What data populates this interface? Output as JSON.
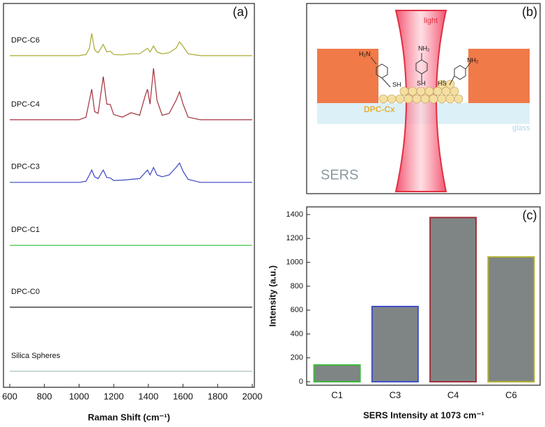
{
  "chart_data": [
    {
      "type": "line",
      "label": "(a)",
      "xlabel": "Raman Shift (cm⁻¹)",
      "x": [
        600,
        650,
        700,
        750,
        800,
        850,
        900,
        950,
        1000,
        1040,
        1060,
        1073,
        1090,
        1110,
        1140,
        1160,
        1180,
        1200,
        1250,
        1300,
        1350,
        1380,
        1395,
        1410,
        1430,
        1450,
        1480,
        1520,
        1560,
        1580,
        1600,
        1630,
        1700,
        1800,
        1900,
        2000
      ],
      "xlim": [
        600,
        2000
      ],
      "xticks": [
        600,
        800,
        1000,
        1200,
        1400,
        1600,
        1800,
        2000
      ],
      "ylim": [
        0,
        100
      ],
      "series": [
        {
          "name": "DPC-C6",
          "color": "#a8a832",
          "values": [
            86,
            86,
            86,
            86,
            86,
            86,
            86,
            86,
            86,
            86.3,
            88,
            92,
            87.5,
            86.8,
            89,
            87,
            87.2,
            86.3,
            86.2,
            86.5,
            86.5,
            87.5,
            88,
            87,
            88.6,
            87,
            86.5,
            86.8,
            88,
            89.7,
            88.5,
            86.5,
            86,
            86,
            86,
            86
          ]
        },
        {
          "name": "DPC-C4",
          "color": "#a0303a",
          "values": [
            68.8,
            68.8,
            68.8,
            68.8,
            68.8,
            68.8,
            68.8,
            68.8,
            68.8,
            69.5,
            74,
            77,
            71,
            70.5,
            80.4,
            73,
            72.9,
            70.2,
            69.5,
            70.7,
            70,
            75,
            77,
            73,
            82.6,
            74,
            70,
            70.5,
            74,
            76.3,
            73,
            69.5,
            68.8,
            68.8,
            68.8,
            68.8
          ]
        },
        {
          "name": "DPC-C3",
          "color": "#3a45c0",
          "values": [
            52,
            52,
            52,
            52,
            52,
            52,
            52,
            52,
            52,
            52.3,
            54,
            55.3,
            53.5,
            53,
            55.3,
            53.3,
            53.2,
            52.5,
            52.6,
            52.8,
            53,
            54.5,
            55.3,
            54,
            56,
            54,
            53.5,
            54,
            56,
            57.2,
            55,
            52.8,
            52,
            52,
            52,
            52
          ]
        },
        {
          "name": "DPC-C1",
          "color": "#2fbf2f",
          "values": [
            35.1,
            35.1,
            35.1,
            35.1,
            35.1,
            35.1,
            35.1,
            35.1,
            35.1,
            35.1,
            35.1,
            35.1,
            35.1,
            35.1,
            35.1,
            35.1,
            35.1,
            35.1,
            35.1,
            35.1,
            35.1,
            35.1,
            35.1,
            35.1,
            35.1,
            35.1,
            35.1,
            35.1,
            35.1,
            35.1,
            35.1,
            35.1,
            35.1,
            35.1,
            35.1,
            35.1
          ]
        },
        {
          "name": "DPC-C0",
          "color": "#222222",
          "values": [
            18.5,
            18.5,
            18.5,
            18.5,
            18.5,
            18.5,
            18.5,
            18.5,
            18.5,
            18.5,
            18.5,
            18.5,
            18.5,
            18.5,
            18.5,
            18.5,
            18.5,
            18.5,
            18.5,
            18.5,
            18.5,
            18.5,
            18.5,
            18.5,
            18.5,
            18.5,
            18.5,
            18.5,
            18.5,
            18.5,
            18.5,
            18.5,
            18.5,
            18.5,
            18.5,
            18.5
          ]
        },
        {
          "name": "Silica Spheres",
          "color": "#a8c0c0",
          "values": [
            1.3,
            1.3,
            1.3,
            1.3,
            1.3,
            1.3,
            1.3,
            1.3,
            1.3,
            1.3,
            1.3,
            1.3,
            1.3,
            1.3,
            1.3,
            1.3,
            1.3,
            1.3,
            1.3,
            1.3,
            1.3,
            1.3,
            1.3,
            1.3,
            1.3,
            1.3,
            1.3,
            1.3,
            1.3,
            1.3,
            1.3,
            1.3,
            1.3,
            1.3,
            1.3,
            1.3
          ]
        }
      ]
    },
    {
      "type": "bar",
      "label": "(c)",
      "ylabel": "Intensity (a.u.)",
      "xlabel": "SERS Intensity at 1073 cm⁻¹",
      "categories": [
        "C1",
        "C3",
        "C4",
        "C6"
      ],
      "values": [
        140,
        630,
        1375,
        1045
      ],
      "color": "#7f8585",
      "edge_colors": [
        "#3cb83c",
        "#4050c8",
        "#a0303a",
        "#b0b030"
      ],
      "ylim": [
        0,
        1450
      ],
      "yticks": [
        0,
        200,
        400,
        600,
        800,
        1000,
        1200,
        1400
      ]
    }
  ],
  "diagram": {
    "label": "(b)",
    "light": "light",
    "left_group": "H₂N",
    "center_group": "NH₂",
    "right_group": "NH₂",
    "left_thiol": "SH",
    "center_thiol": "SH",
    "right_thiol": "HS",
    "particles": "DPC-Cx",
    "substrate": "glass",
    "method": "SERS"
  }
}
